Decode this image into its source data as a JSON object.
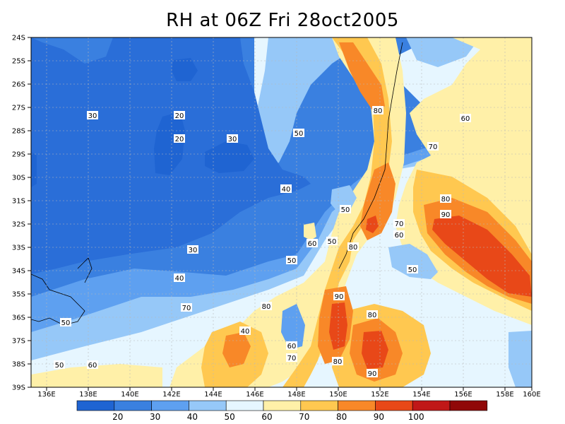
{
  "title": "RH at 06Z Fri 28oct2005",
  "lon_ticks": [
    "136E",
    "138E",
    "140E",
    "142E",
    "144E",
    "146E",
    "148E",
    "150E",
    "152E",
    "154E",
    "156E",
    "158E",
    "160E"
  ],
  "lat_ticks": [
    "24S",
    "25S",
    "26S",
    "27S",
    "28S",
    "29S",
    "30S",
    "31S",
    "32S",
    "33S",
    "34S",
    "35S",
    "36S",
    "37S",
    "38S",
    "39S"
  ],
  "contour_labels": [
    "30",
    "20",
    "20",
    "50",
    "30",
    "40",
    "50",
    "60",
    "30",
    "50",
    "40",
    "50",
    "70",
    "80",
    "40",
    "50",
    "60",
    "50",
    "60",
    "70",
    "90",
    "80",
    "80",
    "80",
    "90",
    "60",
    "70",
    "80",
    "90",
    "60",
    "50",
    "80",
    "70"
  ],
  "colorbar": {
    "labels": [
      "20",
      "30",
      "40",
      "50",
      "60",
      "70",
      "80",
      "90",
      "100"
    ],
    "colors": [
      "#1f64d2",
      "#3a80e0",
      "#5ea0f0",
      "#96c8f8",
      "#e6f6ff",
      "#fff0a8",
      "#ffc850",
      "#f88828",
      "#e84818",
      "#c01818",
      "#900808"
    ]
  }
}
